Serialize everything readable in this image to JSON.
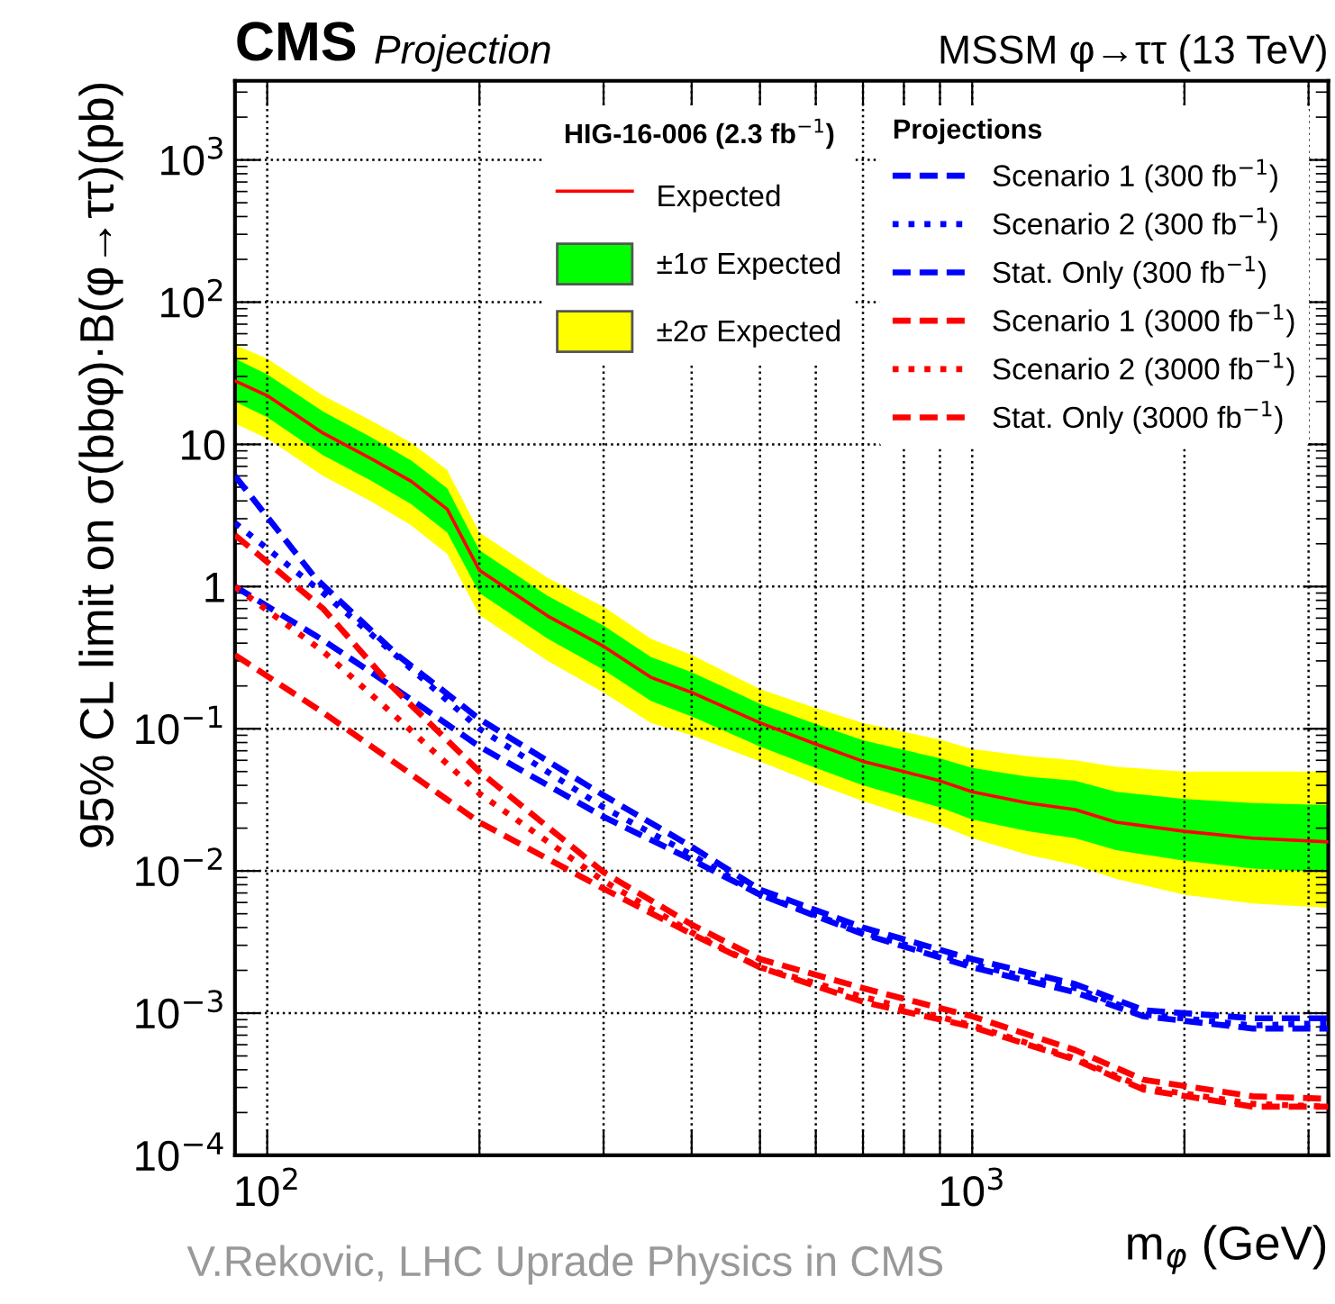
{
  "chart_data": {
    "type": "line",
    "title": "CMS",
    "subtitle": "Projection",
    "xlabel": "m$_{φ}$ (GeV)",
    "ylabel": "95% CL limit on σ(bbφ)·B(φ→ττ)(pb)",
    "annotations": [
      "MSSM φ→ττ (13 TeV)",
      "HIG-16-006 (2.3 fb$^{−1}$)",
      "Projections",
      "V.Rekovic, LHC Uprade Physics in CMS"
    ],
    "log": "xy",
    "grid": true,
    "legend": "top right",
    "xlim": [
      90,
      3200
    ],
    "ylim": [
      0.0001,
      3600
    ],
    "xticks": [
      {
        "value": 100,
        "label": "10$^{2}$"
      },
      {
        "value": 200,
        "label": null
      },
      {
        "value": 300,
        "label": null
      },
      {
        "value": 400,
        "label": null
      },
      {
        "value": 500,
        "label": null
      },
      {
        "value": 600,
        "label": null
      },
      {
        "value": 700,
        "label": null
      },
      {
        "value": 800,
        "label": null
      },
      {
        "value": 900,
        "label": null
      },
      {
        "value": 1000,
        "label": "10$^{3}$"
      },
      {
        "value": 2000,
        "label": null
      },
      {
        "value": 3000,
        "label": null
      }
    ],
    "yticks": [
      {
        "value": 0.0001,
        "label": "10$^{−4}$"
      },
      {
        "value": 0.001,
        "label": "10$^{−3}$"
      },
      {
        "value": 0.01,
        "label": "10$^{−2}$"
      },
      {
        "value": 0.1,
        "label": "10$^{−1}$"
      },
      1,
      10,
      {
        "value": 100,
        "label": "10$^{2}$"
      },
      {
        "value": 1000,
        "label": "10$^{3}$"
      }
    ],
    "x": [
      90,
      100,
      120,
      140,
      160,
      180,
      200,
      250,
      300,
      350,
      400,
      500,
      600,
      700,
      800,
      900,
      1000,
      1200,
      1400,
      1600,
      2000,
      2500,
      3200
    ],
    "series": [
      {
        "name": "Expected",
        "color": "#ff0000",
        "line_style": "solid",
        "values": [
          28,
          22,
          12,
          8,
          5.5,
          3.5,
          1.3,
          0.62,
          0.38,
          0.23,
          0.18,
          0.11,
          0.078,
          0.059,
          0.05,
          0.043,
          0.036,
          0.03,
          0.027,
          0.022,
          0.019,
          0.017,
          0.016
        ]
      },
      {
        "name": "±1σ Expected",
        "color": "#00ff00",
        "values": [
          null,
          null,
          null,
          null,
          null,
          null,
          null,
          null,
          null,
          null,
          null,
          null,
          null,
          null,
          null,
          null,
          null,
          null,
          null,
          null,
          null,
          null,
          null
        ],
        "upper": [
          40,
          31,
          17,
          11.3,
          7.7,
          4.9,
          1.8,
          0.86,
          0.53,
          0.32,
          0.25,
          0.15,
          0.108,
          0.083,
          0.071,
          0.062,
          0.053,
          0.046,
          0.043,
          0.036,
          0.032,
          0.03,
          0.029
        ],
        "lower": [
          20,
          15.5,
          8.4,
          5.6,
          3.8,
          2.4,
          0.9,
          0.43,
          0.26,
          0.157,
          0.122,
          0.075,
          0.053,
          0.04,
          0.033,
          0.028,
          0.023,
          0.019,
          0.017,
          0.014,
          0.0118,
          0.0104,
          0.0098
        ]
      },
      {
        "name": "±2σ Expected",
        "color": "#ffff00",
        "values": [
          null,
          null,
          null,
          null,
          null,
          null,
          null,
          null,
          null,
          null,
          null,
          null,
          null,
          null,
          null,
          null,
          null,
          null,
          null,
          null,
          null,
          null,
          null
        ],
        "upper": [
          50,
          40,
          22,
          14.8,
          10.3,
          6.6,
          2.4,
          1.15,
          0.72,
          0.43,
          0.33,
          0.19,
          0.14,
          0.11,
          0.095,
          0.084,
          0.072,
          0.064,
          0.06,
          0.054,
          0.05,
          0.05,
          0.05
        ],
        "lower": [
          14,
          11,
          6,
          4,
          2.7,
          1.7,
          0.63,
          0.3,
          0.18,
          0.11,
          0.09,
          0.059,
          0.041,
          0.031,
          0.025,
          0.021,
          0.017,
          0.013,
          0.011,
          0.0088,
          0.0068,
          0.0059,
          0.0055
        ]
      },
      {
        "name": "Scenario 1 (300 fb$^{−1}$)",
        "color": "#0000ff",
        "line_style": "dashed",
        "x": [
          90,
          117,
          153,
          200,
          300,
          400,
          500,
          700,
          1000,
          1400,
          1750,
          2500,
          3200
        ],
        "values": [
          6,
          1.15,
          0.33,
          0.117,
          0.034,
          0.0148,
          0.0074,
          0.004,
          0.0024,
          0.0016,
          0.00105,
          0.00092,
          0.00092
        ]
      },
      {
        "name": "Scenario 2 (300 fb$^{−1}$)",
        "color": "#0000ff",
        "line_style": "dotted",
        "x": [
          90,
          120,
          150,
          200,
          300,
          400,
          500,
          700,
          1000,
          1400,
          1750,
          2500,
          3200
        ],
        "values": [
          2.8,
          0.9,
          0.35,
          0.1,
          0.028,
          0.013,
          0.0068,
          0.0037,
          0.0022,
          0.0015,
          0.00098,
          0.00082,
          0.00085
        ]
      },
      {
        "name": "Stat. Only (300 fb$^{−1}$)",
        "color": "#0000ff",
        "line_style": "dashed",
        "x": [
          90,
          120,
          150,
          200,
          300,
          400,
          500,
          700,
          1000,
          1400,
          1750,
          2500,
          3200
        ],
        "values": [
          1.0,
          0.42,
          0.2,
          0.075,
          0.024,
          0.012,
          0.0068,
          0.0036,
          0.0021,
          0.0014,
          0.00095,
          0.00078,
          0.00078
        ]
      },
      {
        "name": "Scenario 1 (3000 fb$^{−1}$)",
        "color": "#ff0000",
        "line_style": "dashed",
        "x": [
          90,
          120,
          150,
          200,
          300,
          400,
          500,
          700,
          1000,
          1400,
          1750,
          2500,
          3200
        ],
        "values": [
          2.3,
          0.7,
          0.2,
          0.05,
          0.0098,
          0.0042,
          0.0024,
          0.0015,
          0.00095,
          0.00055,
          0.00034,
          0.00026,
          0.00025
        ]
      },
      {
        "name": "Scenario 2 (3000 fb$^{−1}$)",
        "color": "#ff0000",
        "line_style": "dotted",
        "x": [
          90,
          120,
          150,
          200,
          300,
          400,
          500,
          700,
          1000,
          1400,
          1750,
          2500,
          3200
        ],
        "values": [
          1.0,
          0.35,
          0.13,
          0.035,
          0.0085,
          0.0037,
          0.0021,
          0.0013,
          0.00082,
          0.00048,
          0.0003,
          0.00023,
          0.00022
        ]
      },
      {
        "name": "Stat. Only (3000 fb$^{−1}$)",
        "color": "#ff0000",
        "line_style": "dashed",
        "x": [
          90,
          120,
          150,
          200,
          300,
          400,
          500,
          700,
          1000,
          1400,
          1750,
          2500,
          3200
        ],
        "values": [
          0.33,
          0.13,
          0.06,
          0.022,
          0.0075,
          0.0036,
          0.0021,
          0.0012,
          0.0008,
          0.00047,
          0.00029,
          0.00022,
          0.00022
        ]
      }
    ]
  }
}
